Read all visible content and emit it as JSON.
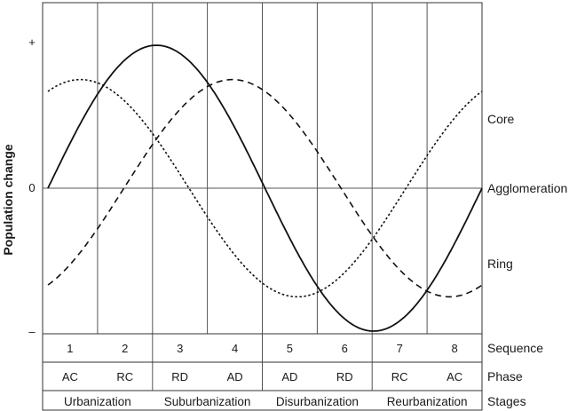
{
  "figure": {
    "ylabel": "Population change",
    "y_ticks": {
      "top": "+",
      "zero": "0",
      "bottom": "–"
    },
    "series_labels": {
      "core": "Core",
      "agglomeration": "Agglomeration",
      "ring": "Ring"
    },
    "rows": {
      "sequence": {
        "label": "Sequence",
        "cells": [
          "1",
          "2",
          "3",
          "4",
          "5",
          "6",
          "7",
          "8"
        ]
      },
      "phase": {
        "label": "Phase",
        "cells": [
          "AC",
          "RC",
          "RD",
          "AD",
          "AD",
          "RD",
          "RC",
          "AC"
        ]
      },
      "stages": {
        "label": "Stages",
        "cells": [
          "Urbanization",
          "Suburbanization",
          "Disurbanization",
          "Reurbanization"
        ]
      }
    }
  },
  "chart_data": {
    "type": "line",
    "x": [
      1,
      2,
      3,
      4,
      5,
      6,
      7,
      8
    ],
    "ylim": [
      -1,
      1
    ],
    "series": [
      {
        "name": "Agglomeration",
        "style": "solid",
        "amplitude": 1.0,
        "phase_offset": 0
      },
      {
        "name": "Core",
        "style": "dashed",
        "amplitude": 0.76,
        "phase_offset": -1.1
      },
      {
        "name": "Ring",
        "style": "dotted",
        "amplitude": 0.76,
        "phase_offset": 1.1
      }
    ]
  }
}
